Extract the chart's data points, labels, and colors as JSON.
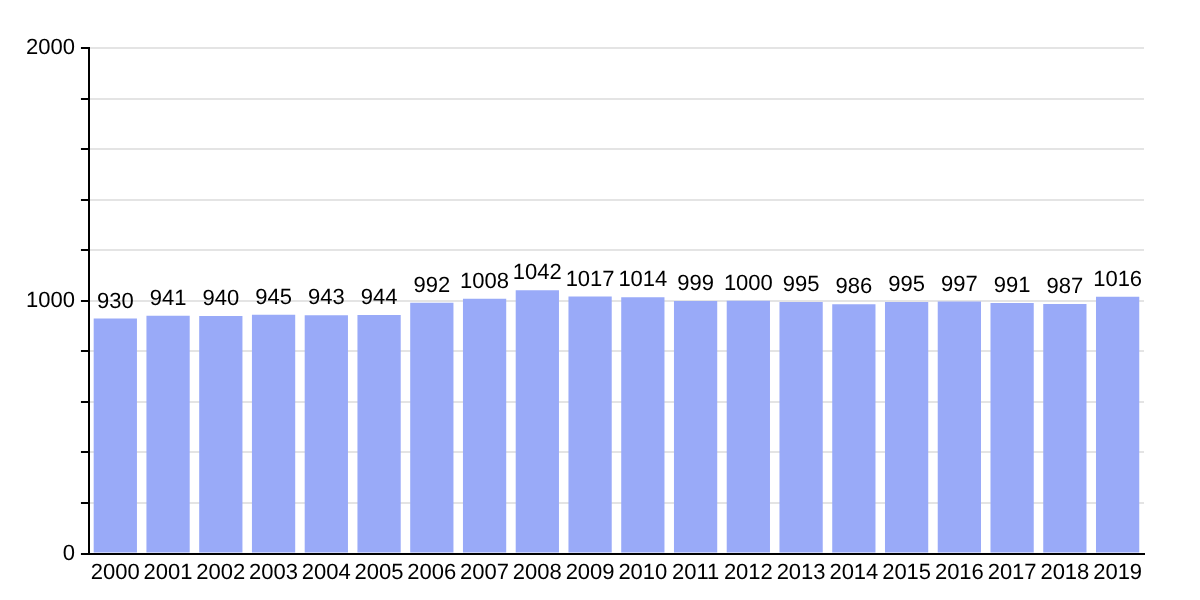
{
  "chart_data": {
    "type": "bar",
    "categories": [
      "2000",
      "2001",
      "2002",
      "2003",
      "2004",
      "2005",
      "2006",
      "2007",
      "2008",
      "2009",
      "2010",
      "2011",
      "2012",
      "2013",
      "2014",
      "2015",
      "2016",
      "2017",
      "2018",
      "2019"
    ],
    "values": [
      930,
      941,
      940,
      945,
      943,
      944,
      992,
      1008,
      1042,
      1017,
      1014,
      999,
      1000,
      995,
      986,
      995,
      997,
      991,
      987,
      1016
    ],
    "color": "#99aaf8",
    "ylim": [
      0,
      2000
    ],
    "yticks": [
      0,
      {
        "value": 200,
        "label": null
      },
      {
        "value": 400,
        "label": null
      },
      {
        "value": 600,
        "label": null
      },
      {
        "value": 800,
        "label": null
      },
      1000,
      {
        "value": 1200,
        "label": null
      },
      {
        "value": 1400,
        "label": null
      },
      {
        "value": 1600,
        "label": null
      },
      {
        "value": 1800,
        "label": null
      },
      2000
    ],
    "grid": true,
    "data_labels": true
  }
}
